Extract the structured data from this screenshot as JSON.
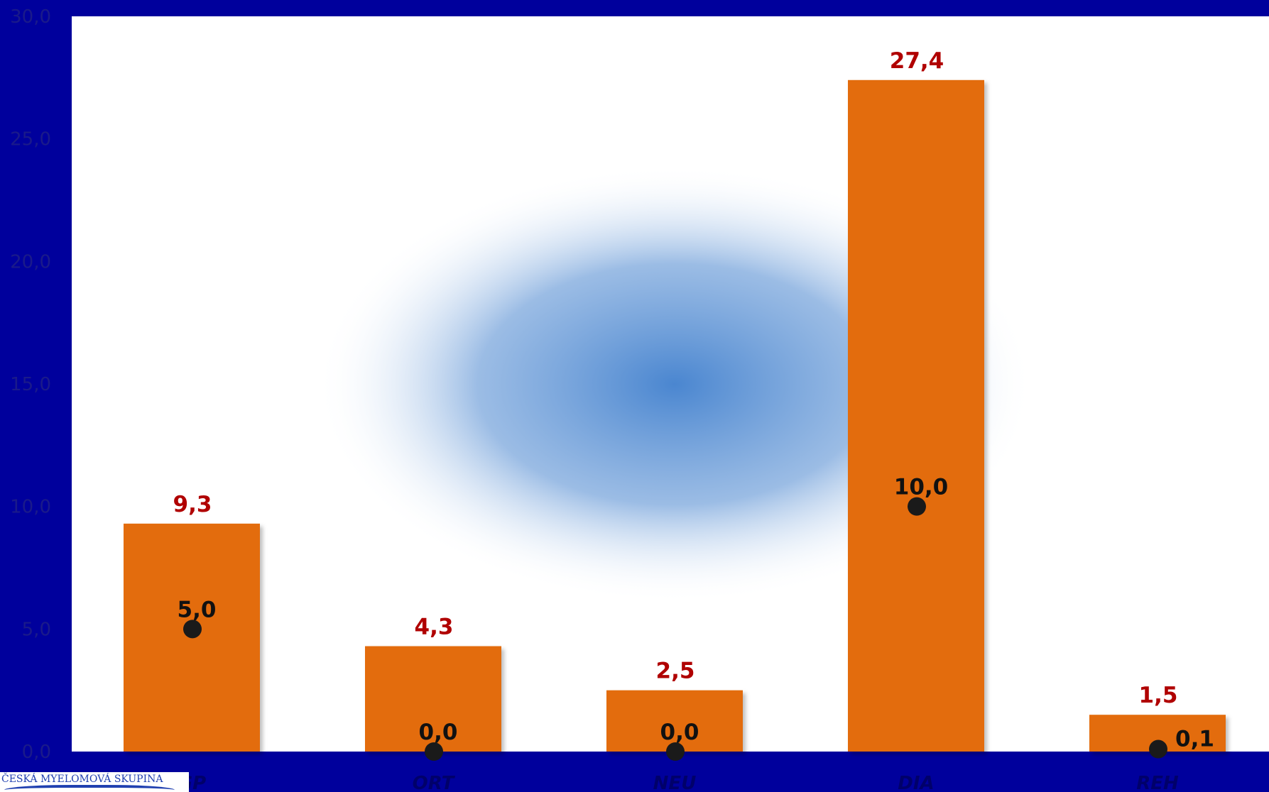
{
  "chart_data": {
    "type": "bar",
    "categories": [
      "GP",
      "ORT",
      "NEU",
      "DIA",
      "REH"
    ],
    "series": [
      {
        "kind": "bar",
        "color": "#e36c0a",
        "values": [
          9.3,
          4.3,
          2.5,
          27.4,
          1.5
        ],
        "labels": [
          "9,3",
          "4,3",
          "2,5",
          "27,4",
          "1,5"
        ]
      },
      {
        "kind": "point",
        "color": "#1a1a1a",
        "values": [
          5.0,
          0.0,
          0.0,
          10.0,
          0.1
        ],
        "labels": [
          "5,0",
          "0,0",
          "0,0",
          "10,0",
          "0,1"
        ]
      }
    ],
    "ylim": [
      0,
      30
    ],
    "yticks": [
      0,
      5,
      10,
      15,
      20,
      25,
      30
    ],
    "ytick_labels": [
      "0,0",
      "5,0",
      "10,0",
      "15,0",
      "20,0",
      "25,0",
      "30,0"
    ],
    "grid": false,
    "colors": {
      "background": "#00009c",
      "plot_area": "#ffffff",
      "bar_label": "#b00000",
      "point_label": "#111111",
      "watermark": "#4a86d0"
    }
  },
  "logo": {
    "text": "ČESKÁ MYELOMOVÁ SKUPINA"
  }
}
